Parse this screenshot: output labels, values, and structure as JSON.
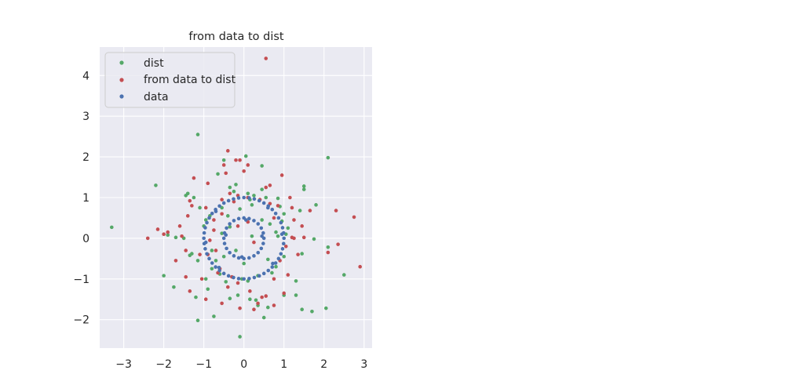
{
  "chart_data": {
    "type": "scatter",
    "title": "from data to dist",
    "xlabel": "",
    "ylabel": "",
    "xlim": [
      -3.6,
      3.2
    ],
    "ylim": [
      -2.7,
      4.7
    ],
    "x_ticks": [
      -3,
      -2,
      -1,
      0,
      1,
      2,
      3
    ],
    "y_ticks": [
      -2,
      -1,
      0,
      1,
      2,
      3,
      4
    ],
    "x_tick_labels": [
      "−3",
      "−2",
      "−1",
      "0",
      "1",
      "2",
      "3"
    ],
    "y_tick_labels": [
      "−2",
      "−1",
      "0",
      "1",
      "2",
      "3",
      "4"
    ],
    "grid": true,
    "legend_position": "upper-left",
    "series": [
      {
        "name": "dist",
        "color": "#55a868",
        "points": [
          [
            -3.3,
            0.27
          ],
          [
            -2.2,
            1.3
          ],
          [
            -2.0,
            -0.92
          ],
          [
            -1.75,
            -1.2
          ],
          [
            -1.15,
            2.55
          ],
          [
            -1.4,
            1.1
          ],
          [
            -1.45,
            1.05
          ],
          [
            -1.15,
            -2.02
          ],
          [
            -0.5,
            1.92
          ],
          [
            -0.1,
            -2.42
          ],
          [
            0.05,
            2.02
          ],
          [
            0.45,
            1.78
          ],
          [
            0.5,
            -1.95
          ],
          [
            0.3,
            -1.52
          ],
          [
            2.1,
            1.98
          ],
          [
            2.5,
            -0.9
          ],
          [
            2.05,
            -1.72
          ],
          [
            1.7,
            -1.8
          ],
          [
            1.5,
            1.28
          ],
          [
            1.5,
            1.2
          ],
          [
            1.8,
            0.82
          ],
          [
            1.75,
            -0.02
          ],
          [
            2.1,
            -0.22
          ],
          [
            1.45,
            -0.38
          ],
          [
            1.45,
            -1.75
          ],
          [
            1.3,
            -1.4
          ],
          [
            1.3,
            -1.05
          ],
          [
            1.4,
            0.68
          ],
          [
            -1.3,
            -0.38
          ],
          [
            -1.35,
            -0.42
          ],
          [
            -1.5,
            0.0
          ],
          [
            -1.7,
            0.02
          ],
          [
            -0.75,
            -1.92
          ],
          [
            -0.35,
            -1.48
          ],
          [
            -0.15,
            -1.4
          ],
          [
            0.15,
            -1.5
          ],
          [
            0.1,
            -1.05
          ],
          [
            -0.05,
            -1.0
          ],
          [
            -0.45,
            -1.07
          ],
          [
            0.55,
            1.0
          ],
          [
            0.45,
            1.2
          ],
          [
            -0.35,
            1.25
          ],
          [
            -0.2,
            1.32
          ],
          [
            -0.85,
            0.55
          ],
          [
            -0.95,
            0.45
          ],
          [
            -1.0,
            0.3
          ],
          [
            -0.8,
            -0.3
          ],
          [
            0.2,
            0.05
          ],
          [
            0.65,
            0.35
          ],
          [
            0.8,
            -0.7
          ],
          [
            1.0,
            0.6
          ],
          [
            1.1,
            0.25
          ],
          [
            1.0,
            -0.45
          ],
          [
            0.85,
            0.98
          ],
          [
            0.95,
            0.42
          ],
          [
            0.9,
            0.78
          ],
          [
            -0.35,
            0.28
          ],
          [
            -0.55,
            0.12
          ],
          [
            -1.1,
            0.75
          ],
          [
            -1.25,
            1.0
          ],
          [
            -0.55,
            0.75
          ],
          [
            -0.1,
            0.72
          ],
          [
            0.2,
            0.82
          ],
          [
            0.6,
            -0.52
          ],
          [
            0.7,
            -0.85
          ],
          [
            0.35,
            -0.92
          ],
          [
            -0.6,
            -0.88
          ],
          [
            -0.7,
            -0.55
          ],
          [
            -1.15,
            -0.55
          ],
          [
            -0.95,
            -1.0
          ],
          [
            0.85,
            0.05
          ],
          [
            1.05,
            0.1
          ],
          [
            0.8,
            0.15
          ],
          [
            -0.8,
            -0.75
          ],
          [
            -0.25,
            1.15
          ],
          [
            0.1,
            1.1
          ],
          [
            0.35,
            -1.65
          ],
          [
            0.6,
            -1.7
          ],
          [
            -1.9,
            0.08
          ],
          [
            -0.65,
            1.58
          ],
          [
            0.0,
            -0.62
          ],
          [
            -0.2,
            -0.3
          ],
          [
            -0.5,
            -0.45
          ],
          [
            -0.4,
            0.55
          ],
          [
            0.25,
            1.05
          ],
          [
            0.15,
            0.95
          ],
          [
            0.45,
            0.45
          ],
          [
            1.0,
            -1.4
          ],
          [
            -1.2,
            -1.45
          ],
          [
            -0.9,
            -1.25
          ]
        ]
      },
      {
        "name": "from data to dist",
        "color": "#c44e52",
        "points": [
          [
            -2.4,
            0.0
          ],
          [
            -2.15,
            0.22
          ],
          [
            -2.0,
            0.1
          ],
          [
            -1.9,
            0.15
          ],
          [
            -1.7,
            -0.55
          ],
          [
            -1.45,
            -0.95
          ],
          [
            -1.35,
            -1.3
          ],
          [
            -1.4,
            0.55
          ],
          [
            -1.35,
            0.92
          ],
          [
            -1.25,
            1.48
          ],
          [
            -0.9,
            1.35
          ],
          [
            -0.5,
            1.8
          ],
          [
            -0.4,
            2.15
          ],
          [
            -0.2,
            1.92
          ],
          [
            -0.1,
            1.92
          ],
          [
            0.1,
            1.8
          ],
          [
            0.95,
            1.55
          ],
          [
            0.55,
            4.42
          ],
          [
            2.75,
            0.52
          ],
          [
            2.9,
            -0.7
          ],
          [
            2.35,
            -0.15
          ],
          [
            2.3,
            0.68
          ],
          [
            2.1,
            -0.35
          ],
          [
            1.65,
            0.68
          ],
          [
            1.45,
            0.3
          ],
          [
            1.5,
            0.02
          ],
          [
            1.2,
            0.02
          ],
          [
            1.35,
            -0.4
          ],
          [
            0.75,
            -1.0
          ],
          [
            0.75,
            -1.65
          ],
          [
            0.55,
            -1.42
          ],
          [
            0.25,
            -1.75
          ],
          [
            -0.1,
            -1.72
          ],
          [
            -0.55,
            -1.6
          ],
          [
            -0.95,
            -1.5
          ],
          [
            -1.05,
            -1.0
          ],
          [
            -0.65,
            -0.85
          ],
          [
            -0.3,
            -0.95
          ],
          [
            -0.95,
            0.75
          ],
          [
            -0.55,
            0.95
          ],
          [
            -0.35,
            1.1
          ],
          [
            -0.15,
            1.05
          ],
          [
            0.55,
            1.25
          ],
          [
            0.65,
            1.3
          ],
          [
            0.85,
            0.8
          ],
          [
            1.2,
            0.75
          ],
          [
            1.25,
            0.45
          ],
          [
            1.15,
            1.0
          ],
          [
            1.25,
            0.0
          ],
          [
            -0.75,
            0.2
          ],
          [
            -0.85,
            -0.05
          ],
          [
            -0.9,
            -0.4
          ],
          [
            -0.7,
            -0.3
          ],
          [
            -0.6,
            -0.75
          ],
          [
            -0.4,
            -1.2
          ],
          [
            -0.15,
            -1.1
          ],
          [
            0.15,
            -1.3
          ],
          [
            0.45,
            -1.45
          ],
          [
            0.9,
            -0.55
          ],
          [
            1.05,
            -0.2
          ],
          [
            0.75,
            0.5
          ],
          [
            0.65,
            0.85
          ],
          [
            0.4,
            0.95
          ],
          [
            0.1,
            1.0
          ],
          [
            -0.25,
            0.9
          ],
          [
            -0.55,
            0.6
          ],
          [
            -0.75,
            0.45
          ],
          [
            -1.1,
            -0.4
          ],
          [
            -1.45,
            -0.3
          ],
          [
            -1.55,
            0.05
          ],
          [
            -1.3,
            0.8
          ],
          [
            -1.6,
            0.3
          ],
          [
            -0.15,
            0.3
          ],
          [
            0.25,
            -0.1
          ],
          [
            0.1,
            0.4
          ],
          [
            1.1,
            -0.9
          ],
          [
            1.0,
            -1.35
          ],
          [
            0.35,
            -1.6
          ],
          [
            -0.45,
            1.6
          ],
          [
            0.0,
            1.65
          ]
        ]
      },
      {
        "name": "data",
        "color": "#4c72b0",
        "points": [
          [
            0.5,
            0.0
          ],
          [
            0.483,
            0.129
          ],
          [
            0.433,
            0.25
          ],
          [
            0.354,
            0.354
          ],
          [
            0.25,
            0.433
          ],
          [
            0.129,
            0.483
          ],
          [
            0.0,
            0.5
          ],
          [
            -0.129,
            0.483
          ],
          [
            -0.25,
            0.433
          ],
          [
            -0.354,
            0.354
          ],
          [
            -0.433,
            0.25
          ],
          [
            -0.483,
            0.129
          ],
          [
            -0.5,
            0.0
          ],
          [
            -0.483,
            -0.129
          ],
          [
            -0.433,
            -0.25
          ],
          [
            -0.354,
            -0.354
          ],
          [
            -0.25,
            -0.433
          ],
          [
            -0.129,
            -0.483
          ],
          [
            0.0,
            -0.5
          ],
          [
            0.129,
            -0.483
          ],
          [
            0.25,
            -0.433
          ],
          [
            0.354,
            -0.354
          ],
          [
            0.433,
            -0.25
          ],
          [
            0.483,
            -0.129
          ],
          [
            1.0,
            0.0
          ],
          [
            0.991,
            0.131
          ],
          [
            0.966,
            0.259
          ],
          [
            0.924,
            0.383
          ],
          [
            0.866,
            0.5
          ],
          [
            0.793,
            0.609
          ],
          [
            0.707,
            0.707
          ],
          [
            0.609,
            0.793
          ],
          [
            0.5,
            0.866
          ],
          [
            0.383,
            0.924
          ],
          [
            0.259,
            0.966
          ],
          [
            0.131,
            0.991
          ],
          [
            0.0,
            1.0
          ],
          [
            -0.131,
            0.991
          ],
          [
            -0.259,
            0.966
          ],
          [
            -0.383,
            0.924
          ],
          [
            -0.5,
            0.866
          ],
          [
            -0.609,
            0.793
          ],
          [
            -0.707,
            0.707
          ],
          [
            -0.793,
            0.609
          ],
          [
            -0.866,
            0.5
          ],
          [
            -0.924,
            0.383
          ],
          [
            -0.966,
            0.259
          ],
          [
            -0.991,
            0.131
          ],
          [
            -1.0,
            0.0
          ],
          [
            -0.991,
            -0.131
          ],
          [
            -0.966,
            -0.259
          ],
          [
            -0.924,
            -0.383
          ],
          [
            -0.866,
            -0.5
          ],
          [
            -0.793,
            -0.609
          ],
          [
            -0.707,
            -0.707
          ],
          [
            -0.609,
            -0.793
          ],
          [
            -0.5,
            -0.866
          ],
          [
            -0.383,
            -0.924
          ],
          [
            -0.259,
            -0.966
          ],
          [
            -0.131,
            -0.991
          ],
          [
            0.0,
            -1.0
          ],
          [
            0.131,
            -0.991
          ],
          [
            0.259,
            -0.966
          ],
          [
            0.383,
            -0.924
          ],
          [
            0.5,
            -0.866
          ],
          [
            0.609,
            -0.793
          ],
          [
            0.707,
            -0.707
          ],
          [
            0.793,
            -0.609
          ],
          [
            0.866,
            -0.5
          ],
          [
            0.924,
            -0.383
          ],
          [
            0.966,
            -0.259
          ],
          [
            0.991,
            -0.131
          ],
          [
            0.45,
            0.05
          ],
          [
            -0.45,
            0.08
          ],
          [
            0.05,
            0.45
          ],
          [
            -0.05,
            -0.46
          ],
          [
            0.95,
            0.1
          ],
          [
            -0.95,
            -0.1
          ],
          [
            0.6,
            0.75
          ],
          [
            -0.62,
            -0.72
          ],
          [
            0.72,
            -0.62
          ],
          [
            -0.7,
            0.66
          ]
        ]
      }
    ]
  }
}
